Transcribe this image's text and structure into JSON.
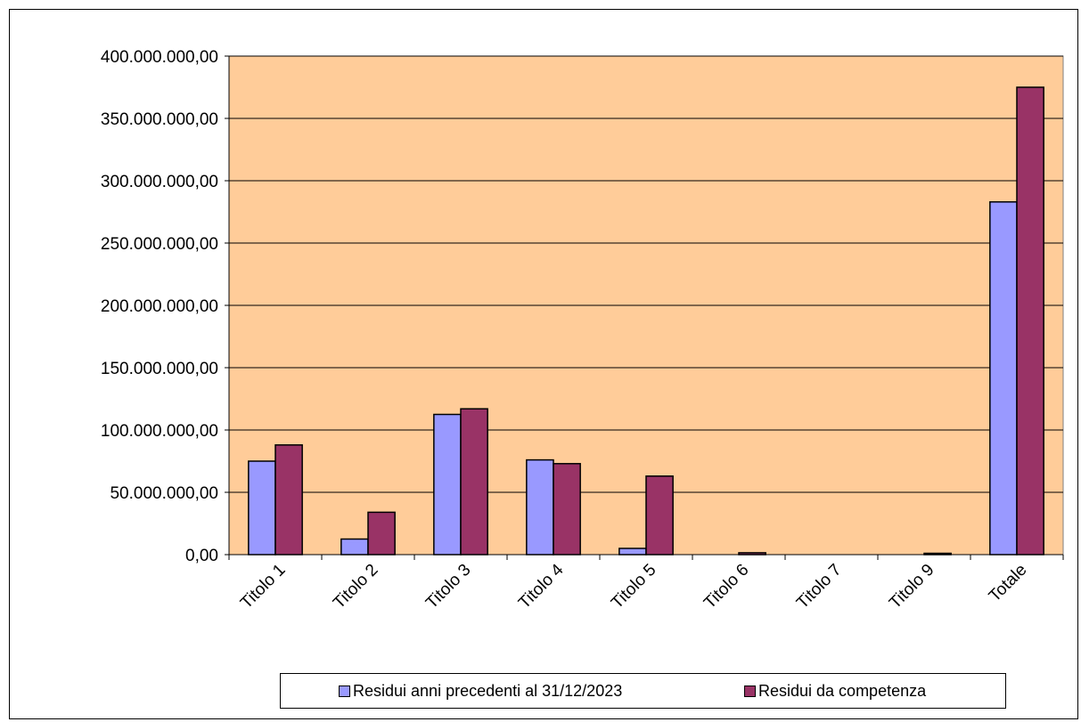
{
  "chart_data": {
    "type": "bar",
    "categories": [
      "Titolo 1",
      "Titolo 2",
      "Titolo 3",
      "Titolo 4",
      "Titolo 5",
      "Titolo 6",
      "Titolo 7",
      "Titolo 9",
      "Totale"
    ],
    "series": [
      {
        "name": "Residui anni precedenti al 31/12/2023",
        "color": "#9999ff",
        "values": [
          75000000,
          12500000,
          112500000,
          76000000,
          5000000,
          0,
          0,
          0,
          283000000
        ]
      },
      {
        "name": "Residui da competenza",
        "color": "#993366",
        "values": [
          88000000,
          34000000,
          117000000,
          73000000,
          63000000,
          1500000,
          0,
          800000,
          375000000
        ]
      }
    ],
    "ylim": [
      0,
      400000000
    ],
    "yticks": [
      "0,00",
      "50.000.000,00",
      "100.000.000,00",
      "150.000.000,00",
      "200.000.000,00",
      "250.000.000,00",
      "300.000.000,00",
      "350.000.000,00",
      "400.000.000,00"
    ],
    "ytick_values": [
      0,
      50000000,
      100000000,
      150000000,
      200000000,
      250000000,
      300000000,
      350000000,
      400000000
    ],
    "plot_background": "#ffcc99",
    "grid": true,
    "legend_position": "bottom"
  }
}
